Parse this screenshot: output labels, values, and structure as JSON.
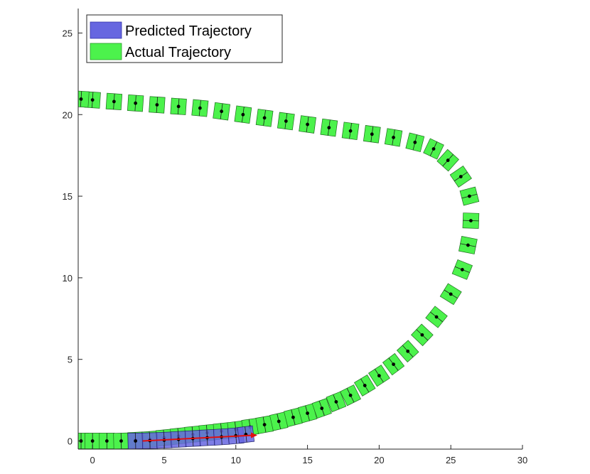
{
  "chart_data": {
    "type": "line",
    "title": "",
    "xlabel": "",
    "ylabel": "",
    "xlim": [
      -1,
      30
    ],
    "ylim": [
      -0.5,
      26.5
    ],
    "x_ticks": [
      0,
      5,
      10,
      15,
      20,
      25,
      30
    ],
    "y_ticks": [
      0,
      5,
      10,
      15,
      20,
      25
    ],
    "grid": false,
    "legend_position": "top-left",
    "legend": [
      {
        "label": "Predicted Trajectory",
        "color": "#6666e0"
      },
      {
        "label": "Actual Trajectory",
        "color": "#4cf24c"
      }
    ],
    "series": [
      {
        "name": "Actual Trajectory",
        "color": "#4cf24c",
        "points": [
          [
            -0.8,
            0
          ],
          [
            0,
            0
          ],
          [
            1,
            0
          ],
          [
            2,
            0
          ],
          [
            3,
            0.05
          ],
          [
            4,
            0.1
          ],
          [
            5,
            0.2
          ],
          [
            6,
            0.3
          ],
          [
            7,
            0.4
          ],
          [
            8,
            0.5
          ],
          [
            9,
            0.6
          ],
          [
            10,
            0.7
          ],
          [
            11,
            0.85
          ],
          [
            12,
            1.0
          ],
          [
            13,
            1.2
          ],
          [
            14,
            1.45
          ],
          [
            15,
            1.7
          ],
          [
            16,
            2.0
          ],
          [
            17,
            2.4
          ],
          [
            18,
            2.8
          ],
          [
            19,
            3.4
          ],
          [
            20,
            4.0
          ],
          [
            21,
            4.7
          ],
          [
            22,
            5.5
          ],
          [
            23,
            6.5
          ],
          [
            24,
            7.6
          ],
          [
            25,
            9.0
          ],
          [
            25.8,
            10.5
          ],
          [
            26.2,
            12
          ],
          [
            26.4,
            13.5
          ],
          [
            26.3,
            15
          ],
          [
            25.7,
            16.2
          ],
          [
            24.8,
            17.2
          ],
          [
            23.8,
            17.9
          ],
          [
            22.5,
            18.3
          ],
          [
            21,
            18.6
          ],
          [
            19.5,
            18.8
          ],
          [
            18,
            19.0
          ],
          [
            16.5,
            19.2
          ],
          [
            15,
            19.4
          ],
          [
            13.5,
            19.6
          ],
          [
            12,
            19.8
          ],
          [
            10.5,
            20.0
          ],
          [
            9,
            20.2
          ],
          [
            7.5,
            20.4
          ],
          [
            6,
            20.5
          ],
          [
            4.5,
            20.6
          ],
          [
            3,
            20.7
          ],
          [
            1.5,
            20.8
          ],
          [
            0,
            20.9
          ],
          [
            -0.8,
            20.95
          ]
        ]
      },
      {
        "name": "Predicted Trajectory",
        "color": "#6666e0",
        "points": [
          [
            3,
            0
          ],
          [
            4,
            0.02
          ],
          [
            5,
            0.05
          ],
          [
            6,
            0.1
          ],
          [
            7,
            0.15
          ],
          [
            8,
            0.2
          ],
          [
            9,
            0.25
          ],
          [
            10,
            0.32
          ],
          [
            10.7,
            0.4
          ]
        ]
      }
    ],
    "direction_arrow": {
      "color": "#e01010",
      "from": [
        3.5,
        0
      ],
      "to": [
        11.5,
        0.35
      ]
    }
  }
}
